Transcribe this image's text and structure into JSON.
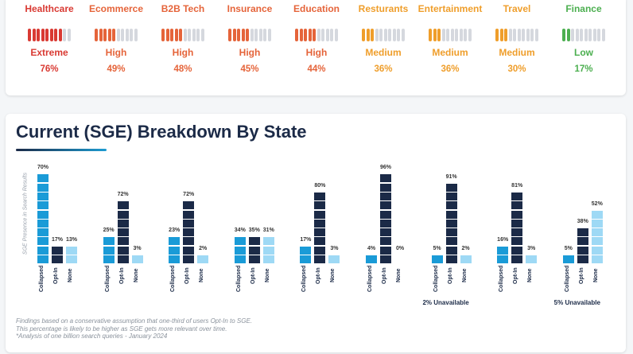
{
  "industries": [
    {
      "name": "Healthcare",
      "level": "Extreme",
      "percent": "76%",
      "filled": 8,
      "color": "#d93a33"
    },
    {
      "name": "Ecommerce",
      "level": "High",
      "percent": "49%",
      "filled": 5,
      "color": "#e5643a"
    },
    {
      "name": "B2B Tech",
      "level": "High",
      "percent": "48%",
      "filled": 5,
      "color": "#e5643a"
    },
    {
      "name": "Insurance",
      "level": "High",
      "percent": "45%",
      "filled": 5,
      "color": "#e5643a"
    },
    {
      "name": "Education",
      "level": "High",
      "percent": "44%",
      "filled": 5,
      "color": "#e5643a"
    },
    {
      "name": "Resturants",
      "level": "Medium",
      "percent": "36%",
      "filled": 3,
      "color": "#ef9e2b"
    },
    {
      "name": "Entertainment",
      "level": "Medium",
      "percent": "36%",
      "filled": 3,
      "color": "#ef9e2b"
    },
    {
      "name": "Travel",
      "level": "Medium",
      "percent": "30%",
      "filled": 3,
      "color": "#ef9e2b"
    },
    {
      "name": "Finance",
      "level": "Low",
      "percent": "17%",
      "filled": 2,
      "color": "#4caf50"
    }
  ],
  "meter_segments": 10,
  "chart_data": {
    "type": "bar",
    "title": "Current (SGE) Breakdown By State",
    "ylabel": "SGE Presence in Search Results",
    "categories": [
      "Collapsed",
      "Opt-In",
      "None"
    ],
    "colors": {
      "Collapsed": "#1a9bd7",
      "Opt-In": "#1b2a47",
      "None": "#9ed9f5"
    },
    "groups": [
      {
        "values": [
          70,
          17,
          13
        ],
        "blocks": [
          10,
          2,
          2
        ]
      },
      {
        "values": [
          25,
          72,
          3
        ],
        "blocks": [
          3,
          7,
          1
        ]
      },
      {
        "values": [
          23,
          72,
          2
        ],
        "blocks": [
          3,
          7,
          1
        ]
      },
      {
        "values": [
          34,
          35,
          31
        ],
        "blocks": [
          3,
          3,
          3
        ]
      },
      {
        "values": [
          17,
          80,
          3
        ],
        "blocks": [
          2,
          8,
          1
        ]
      },
      {
        "values": [
          4,
          96,
          0
        ],
        "blocks": [
          1,
          10,
          0
        ]
      },
      {
        "values": [
          5,
          91,
          2
        ],
        "blocks": [
          1,
          9,
          1
        ],
        "note": "2% Unavailable"
      },
      {
        "values": [
          16,
          81,
          3
        ],
        "blocks": [
          2,
          8,
          1
        ]
      },
      {
        "values": [
          5,
          38,
          52
        ],
        "blocks": [
          1,
          4,
          6
        ],
        "note": "5% Unavailable"
      }
    ],
    "footnote": [
      "Findings based on a conservative assumption that one-third of users Opt-In to SGE.",
      "This percentage is likely to be higher as SGE gets more relevant over time.",
      "*Analysis of one billion search queries - January 2024"
    ]
  }
}
